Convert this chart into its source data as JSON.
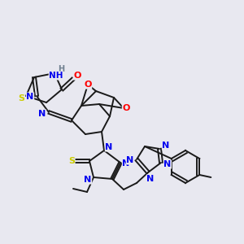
{
  "background_color": "#e8e8f0",
  "bond_color": "#1a1a1a",
  "atom_colors": {
    "O": "#ff0000",
    "N": "#0000ee",
    "S": "#cccc00",
    "H": "#708090",
    "C": "#1a1a1a"
  },
  "figsize": [
    3.0,
    3.0
  ],
  "dpi": 100
}
